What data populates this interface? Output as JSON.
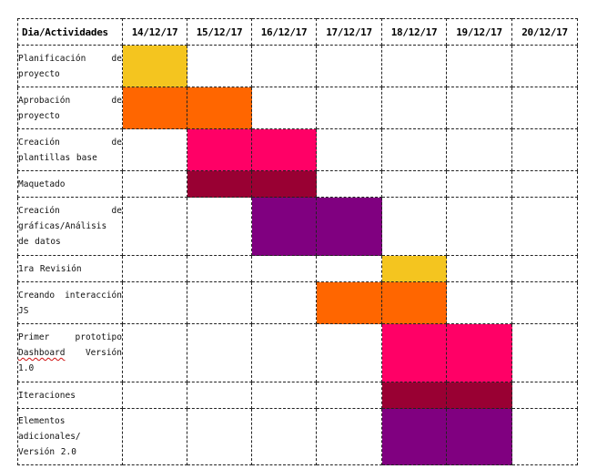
{
  "colors": {
    "yellow": "#F4C51F",
    "orange": "#FF6600",
    "pink": "#FF0066",
    "crimson": "#990033",
    "purple": "#800080"
  },
  "header": {
    "corner": "Dia/Actividades",
    "dates": [
      "14/12/17",
      "15/12/17",
      "16/12/17",
      "17/12/17",
      "18/12/17",
      "19/12/17",
      "20/12/17"
    ]
  },
  "rows": [
    {
      "activity": "Planificación de proyecto",
      "color": "yellow",
      "filled": [
        0
      ]
    },
    {
      "activity": "Aprobación de proyecto",
      "color": "orange",
      "filled": [
        0,
        1
      ]
    },
    {
      "activity": "Creación de plantillas base",
      "color": "pink",
      "filled": [
        1,
        2
      ]
    },
    {
      "activity": "Maquetado",
      "color": "crimson",
      "filled": [
        1,
        2
      ]
    },
    {
      "activity": "Creación de gráficas/Análisis de datos",
      "color": "purple",
      "filled": [
        2,
        3
      ]
    },
    {
      "activity": "1ra Revisión",
      "color": "yellow",
      "filled": [
        4
      ]
    },
    {
      "activity": "Creando interacción JS",
      "color": "orange",
      "filled": [
        3,
        4
      ]
    },
    {
      "activity_parts": [
        "Primer prototipo ",
        "Dashboard",
        " Versión 1.0"
      ],
      "color": "pink",
      "filled": [
        4,
        5
      ]
    },
    {
      "activity": "Iteraciones",
      "color": "crimson",
      "filled": [
        4,
        5
      ]
    },
    {
      "activity": "Elementos adicionales/ Versión 2.0",
      "color": "purple",
      "filled": [
        4,
        5
      ]
    }
  ]
}
